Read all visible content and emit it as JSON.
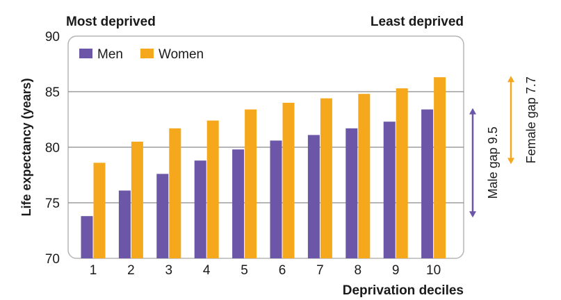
{
  "chart_data": {
    "type": "bar",
    "categories": [
      "1",
      "2",
      "3",
      "4",
      "5",
      "6",
      "7",
      "8",
      "9",
      "10"
    ],
    "series": [
      {
        "name": "Men",
        "color": "#6b56a8",
        "values": [
          73.8,
          76.1,
          77.6,
          78.8,
          79.8,
          80.6,
          81.1,
          81.7,
          82.3,
          83.4
        ]
      },
      {
        "name": "Women",
        "color": "#f5a81c",
        "values": [
          78.6,
          80.5,
          81.7,
          82.4,
          83.4,
          84.0,
          84.4,
          84.8,
          85.3,
          86.3
        ]
      }
    ],
    "ylim": [
      70,
      90
    ],
    "yticks": [
      70,
      75,
      80,
      85,
      90
    ],
    "ylabel": "Life expectancy (years)",
    "xlabel": "Deprivation deciles",
    "grid": true,
    "legend_position": "top-left",
    "annotations": {
      "top_left": "Most deprived",
      "top_right": "Least deprived",
      "male_gap": "Male gap 9.5",
      "female_gap": "Female gap 7.7"
    },
    "gap_ranges": {
      "male": [
        73.8,
        83.4
      ],
      "female": [
        78.6,
        86.3
      ]
    },
    "colors": {
      "men": "#6b56a8",
      "women": "#f5a81c",
      "frame": "#b5b5b5",
      "grid": "#8a8a8a",
      "text": "#1a1a1a"
    }
  }
}
